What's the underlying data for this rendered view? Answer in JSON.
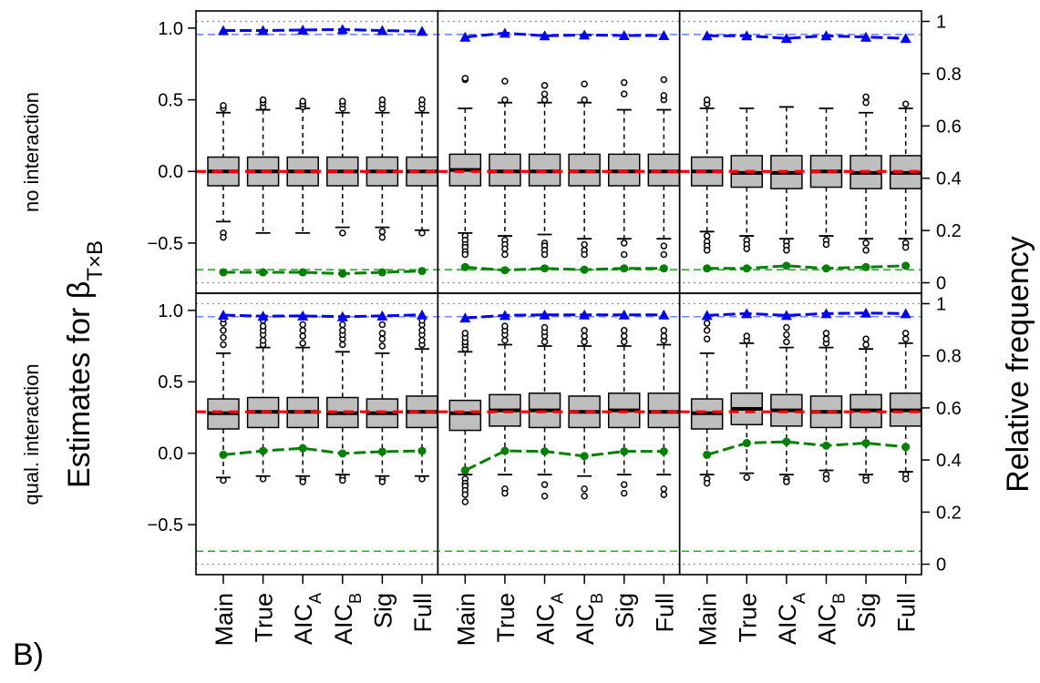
{
  "figure": {
    "panel_letter": "B)",
    "left_axis_label": "Estimates for β",
    "left_axis_label_sub": "T×B",
    "right_axis_label": "Relative frequency",
    "row_labels": [
      "no interaction",
      "qual. interaction"
    ]
  },
  "chart_data": {
    "type": "box",
    "categories": [
      "Main",
      "True",
      "AIC",
      "AIC",
      "Sig",
      "Full"
    ],
    "category_subscripts": [
      "",
      "",
      "A",
      "B",
      "",
      ""
    ],
    "left_axis": {
      "ylim": [
        -0.85,
        1.12
      ],
      "ticks": [
        1.0,
        0.5,
        0.0,
        -0.5
      ],
      "tick_labels": [
        "1.0",
        "0.5",
        "0.0",
        "−0.5"
      ]
    },
    "right_axis": {
      "ylim": [
        -0.04,
        1.04
      ],
      "ticks": [
        1,
        0.8,
        0.6,
        0.4,
        0.2,
        0
      ],
      "tick_labels": [
        "1",
        "0.8",
        "0.6",
        "0.4",
        "0.2",
        "0"
      ]
    },
    "colors": {
      "box_fill": "#bebebe",
      "true_value": "#ff0000",
      "blue_series": "#0000ff",
      "green_series": "#008000",
      "ref_blue": "#6b8cff",
      "ref_green": "#2ea82e"
    },
    "rows": [
      {
        "label": "no interaction",
        "true_value": 0.0,
        "blue_reference": 0.95,
        "green_reference": 0.05,
        "columns": [
          {
            "boxes": [
              {
                "q1": -0.1,
                "median": 0.0,
                "q3": 0.1,
                "whisker_low": -0.35,
                "whisker_high": 0.41,
                "outliers_high": [
                  0.44,
                  0.46
                ],
                "outliers_low": [
                  -0.43,
                  -0.46
                ]
              },
              {
                "q1": -0.1,
                "median": 0.0,
                "q3": 0.1,
                "whisker_low": -0.43,
                "whisker_high": 0.43,
                "outliers_high": [
                  0.45,
                  0.48,
                  0.5
                ],
                "outliers_low": []
              },
              {
                "q1": -0.1,
                "median": 0.0,
                "q3": 0.1,
                "whisker_low": -0.43,
                "whisker_high": 0.44,
                "outliers_high": [
                  0.45,
                  0.47,
                  0.49
                ],
                "outliers_low": []
              },
              {
                "q1": -0.1,
                "median": 0.0,
                "q3": 0.1,
                "whisker_low": -0.39,
                "whisker_high": 0.41,
                "outliers_high": [
                  0.44,
                  0.47,
                  0.49
                ],
                "outliers_low": [
                  -0.43
                ]
              },
              {
                "q1": -0.1,
                "median": 0.0,
                "q3": 0.1,
                "whisker_low": -0.39,
                "whisker_high": 0.41,
                "outliers_high": [
                  0.44,
                  0.47,
                  0.5
                ],
                "outliers_low": [
                  -0.42,
                  -0.46
                ]
              },
              {
                "q1": -0.1,
                "median": 0.0,
                "q3": 0.1,
                "whisker_low": -0.41,
                "whisker_high": 0.41,
                "outliers_high": [
                  0.44,
                  0.47,
                  0.5
                ],
                "outliers_low": [
                  -0.43
                ]
              }
            ],
            "blue": [
              0.965,
              0.965,
              0.967,
              0.969,
              0.965,
              0.962
            ],
            "green": [
              0.04,
              0.04,
              0.04,
              0.035,
              0.04,
              0.045
            ]
          },
          {
            "boxes": [
              {
                "q1": -0.1,
                "median": 0.01,
                "q3": 0.12,
                "whisker_low": -0.43,
                "whisker_high": 0.44,
                "outliers_high": [
                  0.64,
                  0.65
                ],
                "outliers_low": [
                  -0.45,
                  -0.48,
                  -0.51,
                  -0.53,
                  -0.56,
                  -0.58
                ]
              },
              {
                "q1": -0.1,
                "median": 0.0,
                "q3": 0.12,
                "whisker_low": -0.45,
                "whisker_high": 0.48,
                "outliers_high": [
                  0.5,
                  0.63
                ],
                "outliers_low": [
                  -0.48,
                  -0.51,
                  -0.54,
                  -0.58
                ]
              },
              {
                "q1": -0.1,
                "median": 0.0,
                "q3": 0.12,
                "whisker_low": -0.44,
                "whisker_high": 0.48,
                "outliers_high": [
                  0.5,
                  0.54,
                  0.6
                ],
                "outliers_low": [
                  -0.5,
                  -0.52,
                  -0.55,
                  -0.58
                ]
              },
              {
                "q1": -0.1,
                "median": 0.0,
                "q3": 0.12,
                "whisker_low": -0.47,
                "whisker_high": 0.48,
                "outliers_high": [
                  0.5,
                  0.61
                ],
                "outliers_low": [
                  -0.51,
                  -0.55,
                  -0.58
                ]
              },
              {
                "q1": -0.1,
                "median": 0.0,
                "q3": 0.12,
                "whisker_low": -0.47,
                "whisker_high": 0.43,
                "outliers_high": [
                  0.54,
                  0.62
                ],
                "outliers_low": [
                  -0.5,
                  -0.58
                ]
              },
              {
                "q1": -0.1,
                "median": 0.0,
                "q3": 0.12,
                "whisker_low": -0.47,
                "whisker_high": 0.43,
                "outliers_high": [
                  0.5,
                  0.53,
                  0.64
                ],
                "outliers_low": [
                  -0.52,
                  -0.58
                ]
              }
            ],
            "blue": [
              0.94,
              0.955,
              0.945,
              0.948,
              0.946,
              0.946
            ],
            "green": [
              0.06,
              0.048,
              0.055,
              0.05,
              0.055,
              0.055
            ]
          },
          {
            "boxes": [
              {
                "q1": -0.1,
                "median": 0.0,
                "q3": 0.1,
                "whisker_low": -0.42,
                "whisker_high": 0.44,
                "outliers_high": [
                  0.47,
                  0.5
                ],
                "outliers_low": [
                  -0.45,
                  -0.49,
                  -0.52,
                  -0.55
                ]
              },
              {
                "q1": -0.11,
                "median": -0.01,
                "q3": 0.11,
                "whisker_low": -0.45,
                "whisker_high": 0.44,
                "outliers_high": [],
                "outliers_low": [
                  -0.48,
                  -0.51,
                  -0.54
                ]
              },
              {
                "q1": -0.12,
                "median": -0.01,
                "q3": 0.11,
                "whisker_low": -0.47,
                "whisker_high": 0.45,
                "outliers_high": [],
                "outliers_low": [
                  -0.49,
                  -0.52,
                  -0.55
                ]
              },
              {
                "q1": -0.11,
                "median": 0.0,
                "q3": 0.11,
                "whisker_low": -0.45,
                "whisker_high": 0.44,
                "outliers_high": [],
                "outliers_low": [
                  -0.48,
                  -0.51
                ]
              },
              {
                "q1": -0.12,
                "median": -0.01,
                "q3": 0.11,
                "whisker_low": -0.47,
                "whisker_high": 0.41,
                "outliers_high": [
                  0.48,
                  0.52
                ],
                "outliers_low": [
                  -0.5,
                  -0.55
                ]
              },
              {
                "q1": -0.12,
                "median": -0.01,
                "q3": 0.11,
                "whisker_low": -0.47,
                "whisker_high": 0.44,
                "outliers_high": [
                  0.47
                ],
                "outliers_low": [
                  -0.5,
                  -0.53
                ]
              }
            ],
            "blue": [
              0.945,
              0.945,
              0.935,
              0.945,
              0.94,
              0.935
            ],
            "green": [
              0.055,
              0.055,
              0.065,
              0.055,
              0.06,
              0.065
            ]
          }
        ]
      },
      {
        "label": "qual. interaction",
        "true_value": 0.29,
        "blue_reference": 0.95,
        "green_reference": 0.05,
        "columns": [
          {
            "boxes": [
              {
                "q1": 0.17,
                "median": 0.28,
                "q3": 0.38,
                "whisker_low": -0.17,
                "whisker_high": 0.7,
                "outliers_high": [
                  0.76,
                  0.81,
                  0.86,
                  0.91,
                  0.94
                ],
                "outliers_low": [
                  -0.19
                ]
              },
              {
                "q1": 0.18,
                "median": 0.29,
                "q3": 0.39,
                "whisker_low": -0.16,
                "whisker_high": 0.74,
                "outliers_high": [
                  0.76,
                  0.79,
                  0.83,
                  0.86,
                  0.89,
                  0.93
                ],
                "outliers_low": [
                  -0.18
                ]
              },
              {
                "q1": 0.18,
                "median": 0.29,
                "q3": 0.39,
                "whisker_low": -0.16,
                "whisker_high": 0.74,
                "outliers_high": [
                  0.77,
                  0.82,
                  0.86,
                  0.9
                ],
                "outliers_low": [
                  -0.18,
                  -0.2
                ]
              },
              {
                "q1": 0.18,
                "median": 0.28,
                "q3": 0.39,
                "whisker_low": -0.15,
                "whisker_high": 0.71,
                "outliers_high": [
                  0.76,
                  0.8,
                  0.83,
                  0.86,
                  0.9
                ],
                "outliers_low": [
                  -0.17,
                  -0.19
                ]
              },
              {
                "q1": 0.18,
                "median": 0.28,
                "q3": 0.38,
                "whisker_low": -0.16,
                "whisker_high": 0.7,
                "outliers_high": [
                  0.75,
                  0.8,
                  0.84,
                  0.9
                ],
                "outliers_low": [
                  -0.18,
                  -0.2
                ]
              },
              {
                "q1": 0.18,
                "median": 0.29,
                "q3": 0.4,
                "whisker_low": -0.16,
                "whisker_high": 0.73,
                "outliers_high": [
                  0.76,
                  0.79,
                  0.83,
                  0.86,
                  0.9,
                  0.93
                ],
                "outliers_low": [
                  -0.18
                ]
              }
            ],
            "blue": [
              0.956,
              0.952,
              0.953,
              0.95,
              0.953,
              0.957
            ],
            "green": [
              0.42,
              0.435,
              0.445,
              0.425,
              0.432,
              0.435
            ]
          },
          {
            "boxes": [
              {
                "q1": 0.16,
                "median": 0.28,
                "q3": 0.37,
                "whisker_low": -0.15,
                "whisker_high": 0.71,
                "outliers_high": [
                  0.73,
                  0.76,
                  0.78,
                  0.81,
                  0.84
                ],
                "outliers_low": [
                  -0.18,
                  -0.21,
                  -0.23,
                  -0.26,
                  -0.29,
                  -0.34
                ]
              },
              {
                "q1": 0.19,
                "median": 0.3,
                "q3": 0.41,
                "whisker_low": -0.15,
                "whisker_high": 0.76,
                "outliers_high": [
                  0.79,
                  0.83,
                  0.86,
                  0.89
                ],
                "outliers_low": [
                  -0.25,
                  -0.28
                ]
              },
              {
                "q1": 0.18,
                "median": 0.3,
                "q3": 0.42,
                "whisker_low": -0.15,
                "whisker_high": 0.75,
                "outliers_high": [
                  0.78,
                  0.82,
                  0.85,
                  0.88
                ],
                "outliers_low": [
                  -0.22,
                  -0.3
                ]
              },
              {
                "q1": 0.18,
                "median": 0.29,
                "q3": 0.4,
                "whisker_low": -0.16,
                "whisker_high": 0.75,
                "outliers_high": [
                  0.78,
                  0.82,
                  0.86
                ],
                "outliers_low": [
                  -0.25,
                  -0.3
                ]
              },
              {
                "q1": 0.18,
                "median": 0.3,
                "q3": 0.42,
                "whisker_low": -0.15,
                "whisker_high": 0.75,
                "outliers_high": [
                  0.78,
                  0.82,
                  0.86
                ],
                "outliers_low": [
                  -0.22,
                  -0.28
                ]
              },
              {
                "q1": 0.18,
                "median": 0.29,
                "q3": 0.42,
                "whisker_low": -0.15,
                "whisker_high": 0.76,
                "outliers_high": [
                  0.79,
                  0.82,
                  0.86
                ],
                "outliers_low": [
                  -0.25,
                  -0.29
                ]
              }
            ],
            "blue": [
              0.945,
              0.955,
              0.957,
              0.957,
              0.957,
              0.957
            ],
            "green": [
              0.36,
              0.435,
              0.433,
              0.415,
              0.433,
              0.433
            ]
          },
          {
            "boxes": [
              {
                "q1": 0.17,
                "median": 0.28,
                "q3": 0.38,
                "whisker_low": -0.15,
                "whisker_high": 0.7,
                "outliers_high": [
                  0.8,
                  0.86,
                  0.91
                ],
                "outliers_low": [
                  -0.18,
                  -0.21
                ]
              },
              {
                "q1": 0.2,
                "median": 0.31,
                "q3": 0.42,
                "whisker_low": -0.14,
                "whisker_high": 0.77,
                "outliers_high": [
                  0.79,
                  0.82
                ],
                "outliers_low": [
                  -0.17
                ]
              },
              {
                "q1": 0.19,
                "median": 0.3,
                "q3": 0.41,
                "whisker_low": -0.15,
                "whisker_high": 0.74,
                "outliers_high": [
                  0.78,
                  0.83,
                  0.88
                ],
                "outliers_low": [
                  -0.18,
                  -0.2
                ]
              },
              {
                "q1": 0.18,
                "median": 0.29,
                "q3": 0.4,
                "whisker_low": -0.12,
                "whisker_high": 0.74,
                "outliers_high": [
                  0.77,
                  0.8,
                  0.84
                ],
                "outliers_low": [
                  -0.15,
                  -0.18
                ]
              },
              {
                "q1": 0.18,
                "median": 0.3,
                "q3": 0.41,
                "whisker_low": -0.15,
                "whisker_high": 0.73,
                "outliers_high": [
                  0.76,
                  0.8
                ],
                "outliers_low": [
                  -0.17,
                  -0.19
                ]
              },
              {
                "q1": 0.19,
                "median": 0.3,
                "q3": 0.42,
                "whisker_low": -0.13,
                "whisker_high": 0.77,
                "outliers_high": [
                  0.8,
                  0.84
                ],
                "outliers_low": [
                  -0.15,
                  -0.18
                ]
              }
            ],
            "blue": [
              0.955,
              0.962,
              0.955,
              0.962,
              0.964,
              0.962
            ],
            "green": [
              0.42,
              0.465,
              0.47,
              0.455,
              0.465,
              0.45
            ]
          }
        ]
      }
    ]
  }
}
